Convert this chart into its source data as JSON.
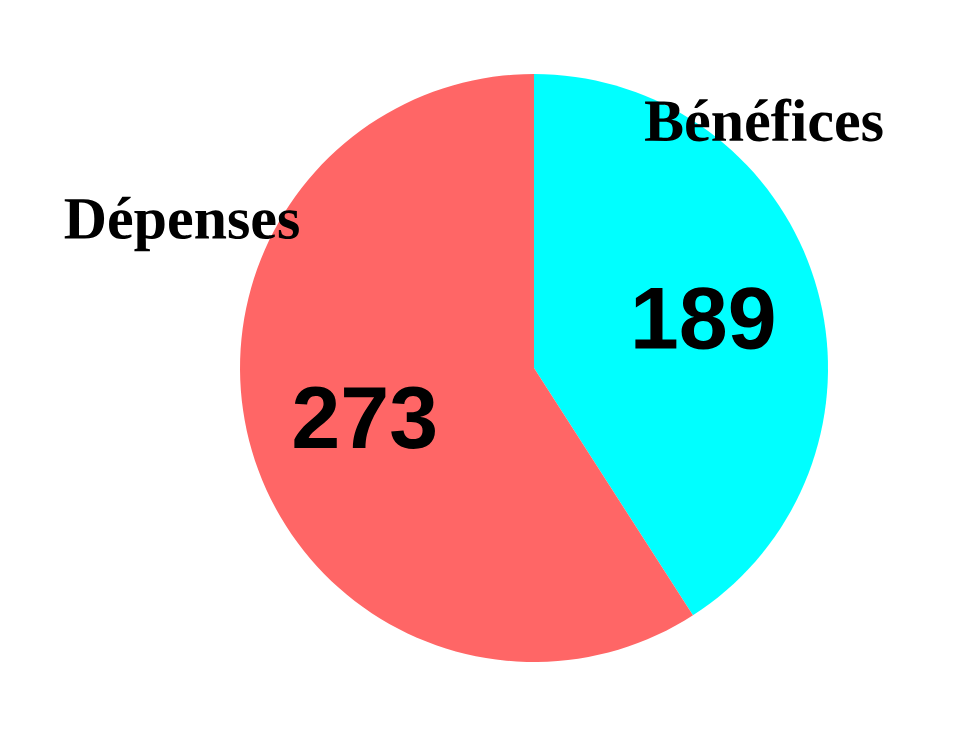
{
  "chart_data": {
    "type": "pie",
    "categories": [
      "Bénéfices",
      "Dépenses"
    ],
    "values": [
      189,
      273
    ],
    "colors": [
      "#00ffff",
      "#ff6666"
    ],
    "data_labels": true
  }
}
